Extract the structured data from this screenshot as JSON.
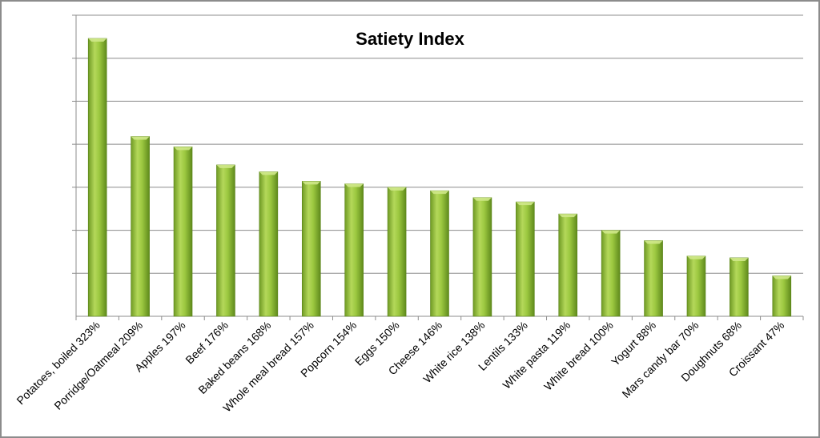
{
  "chart_data": {
    "type": "bar",
    "title": "Satiety Index",
    "categories": [
      "Potatoes, boiled 323%",
      "Porridge/Oatmeal 209%",
      "Apples 197%",
      "Beef 176%",
      "Baked beans 168%",
      "Whole meal bread 157%",
      "Popcorn 154%",
      "Eggs 150%",
      "Cheese 146%",
      "White rice 138%",
      "Lentils 133%",
      "White pasta 119%",
      "White bread 100%",
      "Yogurt 88%",
      "Mars candy bar 70%",
      "Doughnuts 68%",
      "Croissant 47%"
    ],
    "values": [
      323,
      209,
      197,
      176,
      168,
      157,
      154,
      150,
      146,
      138,
      133,
      119,
      100,
      88,
      70,
      68,
      47
    ],
    "xlabel": "",
    "ylabel": "",
    "ylim": [
      0,
      350
    ],
    "grid_step": 50,
    "grid": true,
    "y_tick_labels_shown": false,
    "legend": "none",
    "colors": {
      "bar": "#92c13a",
      "bar_light": "#c3e06a",
      "bar_dark": "#5f8a1c",
      "grid": "#8c8c8c"
    }
  }
}
